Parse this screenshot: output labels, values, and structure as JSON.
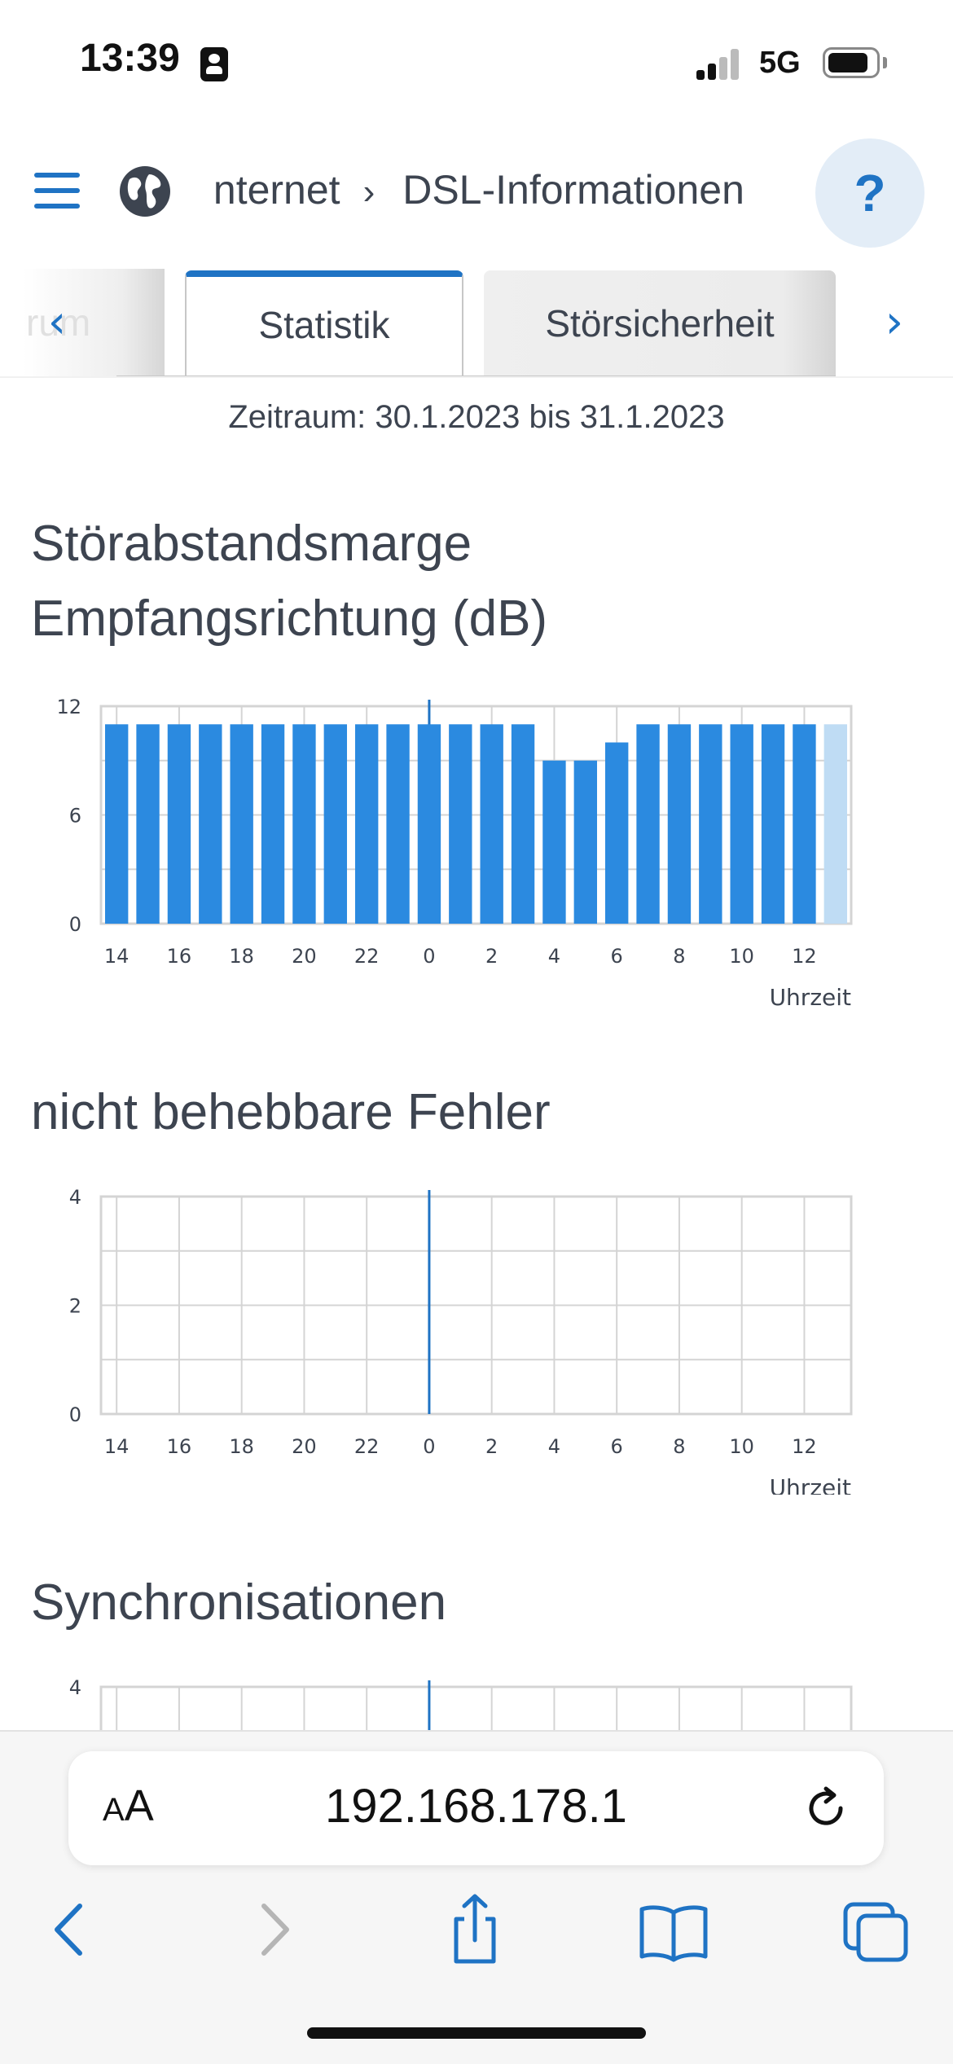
{
  "status_bar": {
    "time": "13:39",
    "network": "5G",
    "battery_level": 0.75
  },
  "header": {
    "breadcrumb": [
      "Internet",
      "DSL-Informationen"
    ],
    "help_label": "?"
  },
  "tabs": {
    "partial_label": "rum",
    "items": [
      {
        "label": "Statistik",
        "active": true
      },
      {
        "label": "Störsicherheit",
        "active": false
      }
    ]
  },
  "period_text": "Zeitraum: 30.1.2023 bis 31.1.2023",
  "colors": {
    "accent": "#1f73c4",
    "bar": "#2b8ae0",
    "bar_current": "#bfdcf4",
    "grid": "#d4d4d4",
    "text": "#3d4450"
  },
  "charts": [
    {
      "title": "Störabstandsmarge Empfangsrichtung (dB)",
      "chart_data": {
        "type": "bar",
        "x": [
          14,
          15,
          16,
          17,
          18,
          19,
          20,
          21,
          22,
          23,
          0,
          1,
          2,
          3,
          4,
          5,
          6,
          7,
          8,
          9,
          10,
          11,
          12,
          13
        ],
        "values": [
          11,
          11,
          11,
          11,
          11,
          11,
          11,
          11,
          11,
          11,
          11,
          11,
          11,
          11,
          9,
          9,
          10,
          11,
          11,
          11,
          11,
          11,
          11,
          11
        ],
        "current_hour_index": 23,
        "ylim": [
          0,
          12
        ],
        "yticks": [
          "0",
          "6",
          "12"
        ],
        "xticks": [
          "14",
          "16",
          "18",
          "20",
          "22",
          "0",
          "2",
          "4",
          "6",
          "8",
          "10",
          "12"
        ],
        "xlabel": "Uhrzeit",
        "grid": true
      }
    },
    {
      "title": "nicht behebbare Fehler",
      "chart_data": {
        "type": "bar",
        "x": [
          14,
          15,
          16,
          17,
          18,
          19,
          20,
          21,
          22,
          23,
          0,
          1,
          2,
          3,
          4,
          5,
          6,
          7,
          8,
          9,
          10,
          11,
          12,
          13
        ],
        "values": [
          0,
          0,
          0,
          0,
          0,
          0,
          0,
          0,
          0,
          0,
          0,
          0,
          0,
          0,
          0,
          0,
          0,
          0,
          0,
          0,
          0,
          0,
          0,
          0
        ],
        "ylim": [
          0,
          4
        ],
        "yticks": [
          "0",
          "2",
          "4"
        ],
        "xticks": [
          "14",
          "16",
          "18",
          "20",
          "22",
          "0",
          "2",
          "4",
          "6",
          "8",
          "10",
          "12"
        ],
        "xlabel": "Uhrzeit",
        "grid": true
      }
    },
    {
      "title": "Synchronisationen",
      "chart_data": {
        "type": "bar",
        "ylim": [
          0,
          4
        ],
        "yticks": [
          "4"
        ],
        "xticks": [],
        "xlabel": "",
        "grid": true
      }
    }
  ],
  "browser": {
    "text_size_label_small": "A",
    "text_size_label_large": "A",
    "url": "192.168.178.1"
  }
}
